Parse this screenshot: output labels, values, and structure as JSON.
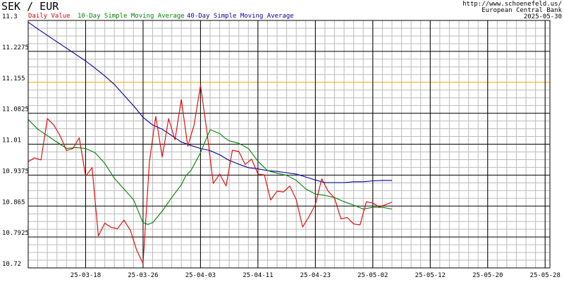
{
  "header": {
    "title": "SEK / EUR",
    "source_url": "http://www.schoenefeld.us/",
    "source_name": "European Central Bank",
    "date": "2025-05-30"
  },
  "colors": {
    "daily": "#dd0000",
    "sma10": "#008000",
    "sma40": "#000099",
    "highlight_line": "#ffa500",
    "major_grid": "#000000",
    "minor_grid": "#bbbbbb"
  },
  "chart_data": {
    "type": "line",
    "title": "SEK / EUR",
    "ylim": [
      10.72,
      11.3
    ],
    "y_ticks": [
      {
        "value": 11.3,
        "label": "11.3"
      },
      {
        "value": 11.2275,
        "label": "11.2275"
      },
      {
        "value": 11.155,
        "label": "11.155"
      },
      {
        "value": 11.0825,
        "label": "11.0825"
      },
      {
        "value": 11.01,
        "label": "11.01"
      },
      {
        "value": 10.9375,
        "label": "10.9375"
      },
      {
        "value": 10.865,
        "label": "10.865"
      },
      {
        "value": 10.7925,
        "label": "10.7925"
      },
      {
        "value": 10.72,
        "label": "10.72"
      }
    ],
    "highlight_value": 11.155,
    "x_start_index": -4.0,
    "x_end_index": 50.5,
    "x_ticks": [
      {
        "index": 2,
        "label": "25-03-18"
      },
      {
        "index": 8,
        "label": "25-03-26"
      },
      {
        "index": 14,
        "label": "25-04-03"
      },
      {
        "index": 20,
        "label": "25-04-11"
      },
      {
        "index": 26,
        "label": "25-04-23"
      },
      {
        "index": 32,
        "label": "25-05-02"
      },
      {
        "index": 38,
        "label": "25-05-12"
      },
      {
        "index": 44,
        "label": "25-05-20"
      },
      {
        "index": 50,
        "label": "25-05-28"
      }
    ],
    "series": [
      {
        "name": "Daily Value",
        "color": "#dd0000",
        "values": [
          [
            -4.0,
            10.969
          ],
          [
            -3.33,
            10.978
          ],
          [
            -2.67,
            10.973
          ],
          [
            -2.0,
            11.07
          ],
          [
            -1.33,
            11.055
          ],
          [
            -0.67,
            11.03
          ],
          [
            0.0,
            10.995
          ],
          [
            0.67,
            11.0
          ],
          [
            1.33,
            11.025
          ],
          [
            2.0,
            10.935
          ],
          [
            2.67,
            10.955
          ],
          [
            3.33,
            10.795
          ],
          [
            4.0,
            10.825
          ],
          [
            4.67,
            10.815
          ],
          [
            5.33,
            10.812
          ],
          [
            6.0,
            10.832
          ],
          [
            6.67,
            10.808
          ],
          [
            7.33,
            10.762
          ],
          [
            8.0,
            10.73
          ],
          [
            8.67,
            10.97
          ],
          [
            9.33,
            11.075
          ],
          [
            10.0,
            10.98
          ],
          [
            10.67,
            11.07
          ],
          [
            11.33,
            11.02
          ],
          [
            12.0,
            11.115
          ],
          [
            12.67,
            11.005
          ],
          [
            13.33,
            11.055
          ],
          [
            14.0,
            11.148
          ],
          [
            14.67,
            11.04
          ],
          [
            15.33,
            10.918
          ],
          [
            16.0,
            10.94
          ],
          [
            16.67,
            10.912
          ],
          [
            17.33,
            10.996
          ],
          [
            18.0,
            10.993
          ],
          [
            18.67,
            10.962
          ],
          [
            19.33,
            10.975
          ],
          [
            20.0,
            10.94
          ],
          [
            20.67,
            10.938
          ],
          [
            21.33,
            10.879
          ],
          [
            22.0,
            10.9
          ],
          [
            22.67,
            10.898
          ],
          [
            23.33,
            10.912
          ],
          [
            24.0,
            10.88
          ],
          [
            24.67,
            10.816
          ],
          [
            25.33,
            10.84
          ],
          [
            26.0,
            10.868
          ],
          [
            26.67,
            10.929
          ],
          [
            27.33,
            10.9
          ],
          [
            28.0,
            10.884
          ],
          [
            28.67,
            10.835
          ],
          [
            29.33,
            10.838
          ],
          [
            30.0,
            10.823
          ],
          [
            30.67,
            10.821
          ],
          [
            31.33,
            10.875
          ],
          [
            32.0,
            10.872
          ],
          [
            32.67,
            10.863
          ],
          [
            33.33,
            10.868
          ],
          [
            34.0,
            10.874
          ]
        ]
      },
      {
        "name": "10-Day Simple Moving Average",
        "color": "#008000",
        "values": [
          [
            -4.0,
            11.068
          ],
          [
            -3.0,
            11.045
          ],
          [
            -2.0,
            11.03
          ],
          [
            -1.0,
            11.015
          ],
          [
            0.0,
            11.0
          ],
          [
            1.0,
            11.002
          ],
          [
            2.0,
            11.0
          ],
          [
            3.0,
            10.99
          ],
          [
            4.0,
            10.965
          ],
          [
            5.0,
            10.93
          ],
          [
            6.0,
            10.905
          ],
          [
            7.0,
            10.88
          ],
          [
            8.0,
            10.826
          ],
          [
            8.5,
            10.822
          ],
          [
            9.0,
            10.826
          ],
          [
            10.0,
            10.853
          ],
          [
            11.0,
            10.885
          ],
          [
            12.0,
            10.915
          ],
          [
            12.5,
            10.937
          ],
          [
            13.0,
            10.948
          ],
          [
            14.0,
            10.99
          ],
          [
            15.0,
            11.044
          ],
          [
            16.0,
            11.035
          ],
          [
            16.5,
            11.025
          ],
          [
            17.0,
            11.018
          ],
          [
            18.0,
            11.012
          ],
          [
            19.0,
            11.0
          ],
          [
            20.0,
            10.97
          ],
          [
            21.0,
            10.948
          ],
          [
            22.0,
            10.942
          ],
          [
            23.0,
            10.937
          ],
          [
            24.0,
            10.925
          ],
          [
            25.0,
            10.905
          ],
          [
            26.0,
            10.893
          ],
          [
            27.0,
            10.89
          ],
          [
            28.0,
            10.885
          ],
          [
            29.0,
            10.875
          ],
          [
            30.0,
            10.867
          ],
          [
            31.0,
            10.858
          ],
          [
            32.0,
            10.862
          ],
          [
            33.0,
            10.862
          ],
          [
            34.0,
            10.858
          ]
        ]
      },
      {
        "name": "40-Day Simple Moving Average",
        "color": "#000099",
        "values": [
          [
            -4.0,
            11.296
          ],
          [
            -3.0,
            11.28
          ],
          [
            -2.0,
            11.265
          ],
          [
            -1.0,
            11.25
          ],
          [
            0.0,
            11.235
          ],
          [
            1.0,
            11.22
          ],
          [
            2.0,
            11.205
          ],
          [
            3.0,
            11.188
          ],
          [
            4.0,
            11.17
          ],
          [
            5.0,
            11.15
          ],
          [
            6.0,
            11.125
          ],
          [
            7.0,
            11.1
          ],
          [
            8.0,
            11.073
          ],
          [
            9.0,
            11.055
          ],
          [
            10.0,
            11.045
          ],
          [
            11.0,
            11.03
          ],
          [
            12.0,
            11.015
          ],
          [
            13.0,
            11.007
          ],
          [
            14.0,
            11.0
          ],
          [
            15.0,
            10.995
          ],
          [
            16.0,
            10.985
          ],
          [
            17.0,
            10.972
          ],
          [
            18.0,
            10.963
          ],
          [
            19.0,
            10.955
          ],
          [
            20.0,
            10.952
          ],
          [
            21.0,
            10.948
          ],
          [
            22.0,
            10.946
          ],
          [
            23.0,
            10.943
          ],
          [
            24.0,
            10.94
          ],
          [
            25.0,
            10.933
          ],
          [
            26.0,
            10.926
          ],
          [
            27.0,
            10.92
          ],
          [
            28.0,
            10.92
          ],
          [
            29.0,
            10.92
          ],
          [
            30.0,
            10.922
          ],
          [
            31.0,
            10.922
          ],
          [
            32.0,
            10.924
          ],
          [
            33.0,
            10.925
          ],
          [
            34.0,
            10.925
          ]
        ]
      }
    ]
  }
}
